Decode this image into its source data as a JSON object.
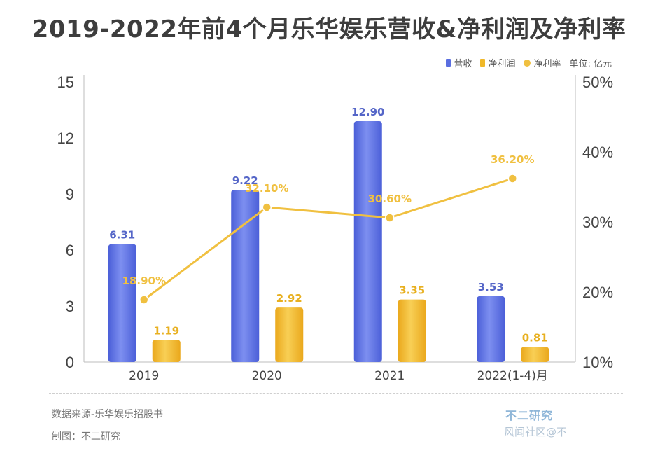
{
  "title": "2019-2022年前4个月乐华娱乐营收&净利润及净利率",
  "legend": {
    "revenue": "营收",
    "net_profit": "净利润",
    "net_margin": "净利率",
    "unit": "单位: 亿元"
  },
  "colors": {
    "revenue": "#5a6ee0",
    "net_profit": "#f0b829",
    "net_margin": "#f0c040",
    "revenue_label": "#5566c8",
    "profit_label": "#e8b020"
  },
  "chart_data": {
    "type": "bar",
    "categories": [
      "2019",
      "2020",
      "2021",
      "2022(1-4)月"
    ],
    "series": [
      {
        "name": "营收",
        "type": "bar",
        "axis": "left",
        "values": [
          6.31,
          9.22,
          12.9,
          3.53
        ],
        "labels": [
          "6.31",
          "9.22",
          "12.90",
          "3.53"
        ]
      },
      {
        "name": "净利润",
        "type": "bar",
        "axis": "left",
        "values": [
          1.19,
          2.92,
          3.35,
          0.81
        ],
        "labels": [
          "1.19",
          "2.92",
          "3.35",
          "0.81"
        ]
      },
      {
        "name": "净利率",
        "type": "line",
        "axis": "right",
        "values": [
          18.9,
          32.1,
          30.6,
          36.2
        ],
        "labels": [
          "18.90%",
          "32.10%",
          "30.60%",
          "36.20%"
        ]
      }
    ],
    "y_left": {
      "range": [
        0,
        15
      ],
      "ticks": [
        "0",
        "3",
        "6",
        "9",
        "12",
        "15"
      ]
    },
    "y_right": {
      "range": [
        10,
        50
      ],
      "ticks": [
        "10%",
        "20%",
        "30%",
        "40%",
        "50%"
      ]
    },
    "legend_position": "top-right",
    "grid": false
  },
  "footer": {
    "source": "数据来源-乐华娱乐招股书",
    "made_by": "制图：不二研究",
    "brand": "不二研究",
    "watermark": "风闻社区@不"
  }
}
